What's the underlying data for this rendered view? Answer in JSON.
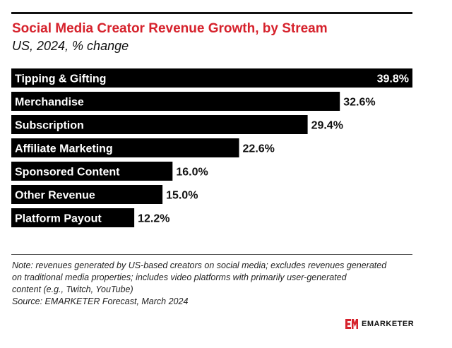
{
  "header": {
    "title": "Social Media Creator Revenue Growth, by Stream",
    "subtitle": "US, 2024, % change"
  },
  "chart_data": {
    "type": "bar",
    "orientation": "horizontal",
    "title": "Social Media Creator Revenue Growth, by Stream",
    "subtitle": "US, 2024, % change",
    "categories": [
      "Tipping & Gifting",
      "Merchandise",
      "Subscription",
      "Affiliate Marketing",
      "Sponsored Content",
      "Other Revenue",
      "Platform Payout"
    ],
    "values": [
      39.8,
      32.6,
      29.4,
      22.6,
      16.0,
      15.0,
      12.2
    ],
    "value_labels": [
      "39.8%",
      "32.6%",
      "29.4%",
      "22.6%",
      "16.0%",
      "15.0%",
      "12.2%"
    ],
    "xlabel": "",
    "ylabel": "",
    "xlim": [
      0,
      39.8
    ],
    "grid": false,
    "bar_color": "#000000"
  },
  "footer": {
    "note_lines": [
      "Note: revenues generated by US-based creators on social media; excludes revenues generated",
      "on traditional media properties; includes video platforms with primarily user-generated",
      "content (e.g., Twitch, YouTube)"
    ],
    "source": "Source: EMARKETER Forecast, March 2024"
  },
  "brand": {
    "logo_icon": "em-logo-icon",
    "logo_text": "EMARKETER",
    "accent_color": "#d6222c"
  }
}
